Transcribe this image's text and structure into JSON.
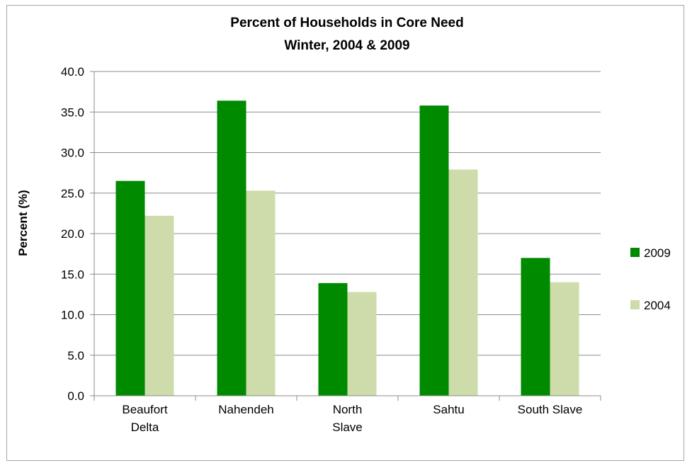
{
  "chart_data": {
    "type": "bar",
    "title": "Percent of Households in Core Need",
    "subtitle": "Winter, 2004 & 2009",
    "xlabel": "",
    "ylabel": "Percent (%)",
    "ylim": [
      0,
      40
    ],
    "yticks": [
      "0.0",
      "5.0",
      "10.0",
      "15.0",
      "20.0",
      "25.0",
      "30.0",
      "35.0",
      "40.0"
    ],
    "grid": true,
    "legend_position": "right",
    "categories": [
      [
        "Beaufort",
        "Delta"
      ],
      [
        "Nahendeh"
      ],
      [
        "North",
        "Slave"
      ],
      [
        "Sahtu"
      ],
      [
        "South Slave"
      ]
    ],
    "series": [
      {
        "name": "2009",
        "color": "#008a00",
        "values": [
          26.5,
          36.4,
          13.9,
          35.8,
          17.0
        ]
      },
      {
        "name": "2004",
        "color": "#cddcaa",
        "values": [
          22.2,
          25.3,
          12.8,
          27.9,
          14.0
        ]
      }
    ]
  }
}
